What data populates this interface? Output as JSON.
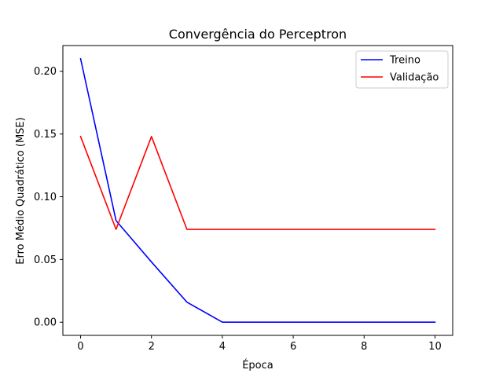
{
  "chart_data": {
    "type": "line",
    "title": "Convergência do Perceptron",
    "xlabel": "Época",
    "ylabel": "Erro Médio Quadrático (MSE)",
    "xlim": [
      -0.5,
      10.5
    ],
    "ylim": [
      -0.0105,
      0.2205
    ],
    "xticks": [
      0,
      2,
      4,
      6,
      8,
      10
    ],
    "xtick_labels": [
      "0",
      "2",
      "4",
      "6",
      "8",
      "10"
    ],
    "yticks": [
      0.0,
      0.05,
      0.1,
      0.15,
      0.2
    ],
    "ytick_labels": [
      "0.00",
      "0.05",
      "0.10",
      "0.15",
      "0.20"
    ],
    "grid": false,
    "legend_position": "top-right",
    "x": [
      0,
      1,
      2,
      3,
      4,
      5,
      6,
      7,
      8,
      9,
      10
    ],
    "series": [
      {
        "name": "Treino",
        "color": "#0000ff",
        "values": [
          0.21,
          0.081,
          0.048,
          0.016,
          0.0,
          0.0,
          0.0,
          0.0,
          0.0,
          0.0,
          0.0
        ]
      },
      {
        "name": "Validação",
        "color": "#ff0000",
        "values": [
          0.148,
          0.074,
          0.148,
          0.074,
          0.074,
          0.074,
          0.074,
          0.074,
          0.074,
          0.074,
          0.074
        ]
      }
    ]
  }
}
